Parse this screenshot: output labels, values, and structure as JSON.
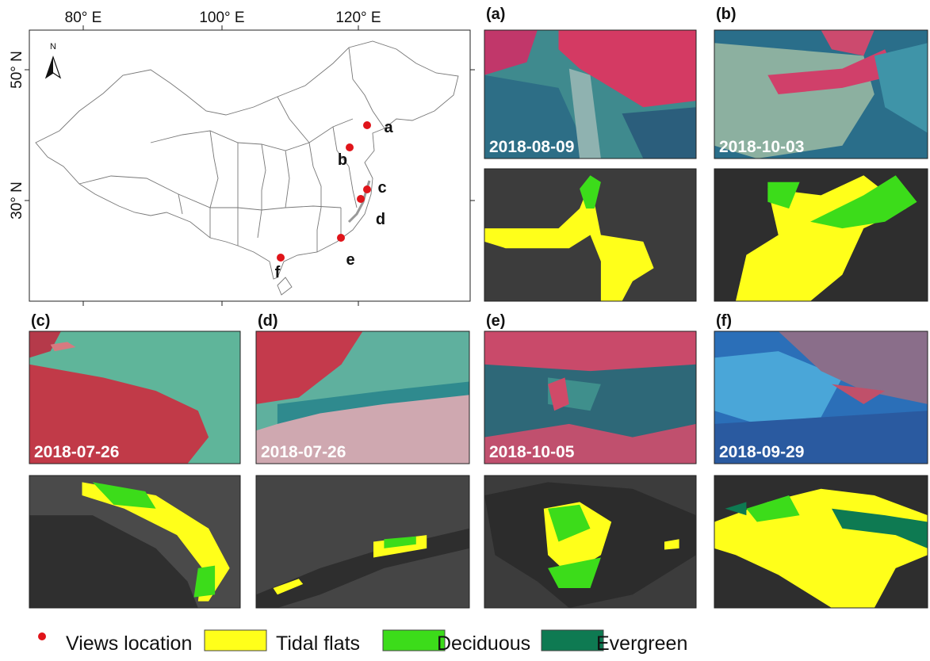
{
  "map": {
    "x_labels": [
      "80° E",
      "100° E",
      "120° E"
    ],
    "y_labels": [
      "50° N",
      "30° N"
    ],
    "compass": "N",
    "locations": [
      "a",
      "b",
      "c",
      "d",
      "e",
      "f"
    ]
  },
  "panels": [
    {
      "label": "(a)",
      "date": "2018-08-09"
    },
    {
      "label": "(b)",
      "date": "2018-10-03"
    },
    {
      "label": "(c)",
      "date": "2018-07-26"
    },
    {
      "label": "(d)",
      "date": "2018-07-26"
    },
    {
      "label": "(e)",
      "date": "2018-10-05"
    },
    {
      "label": "(f)",
      "date": "2018-09-29"
    }
  ],
  "legend": [
    "Views location",
    "Tidal flats",
    "Deciduous",
    "Evergreen"
  ]
}
